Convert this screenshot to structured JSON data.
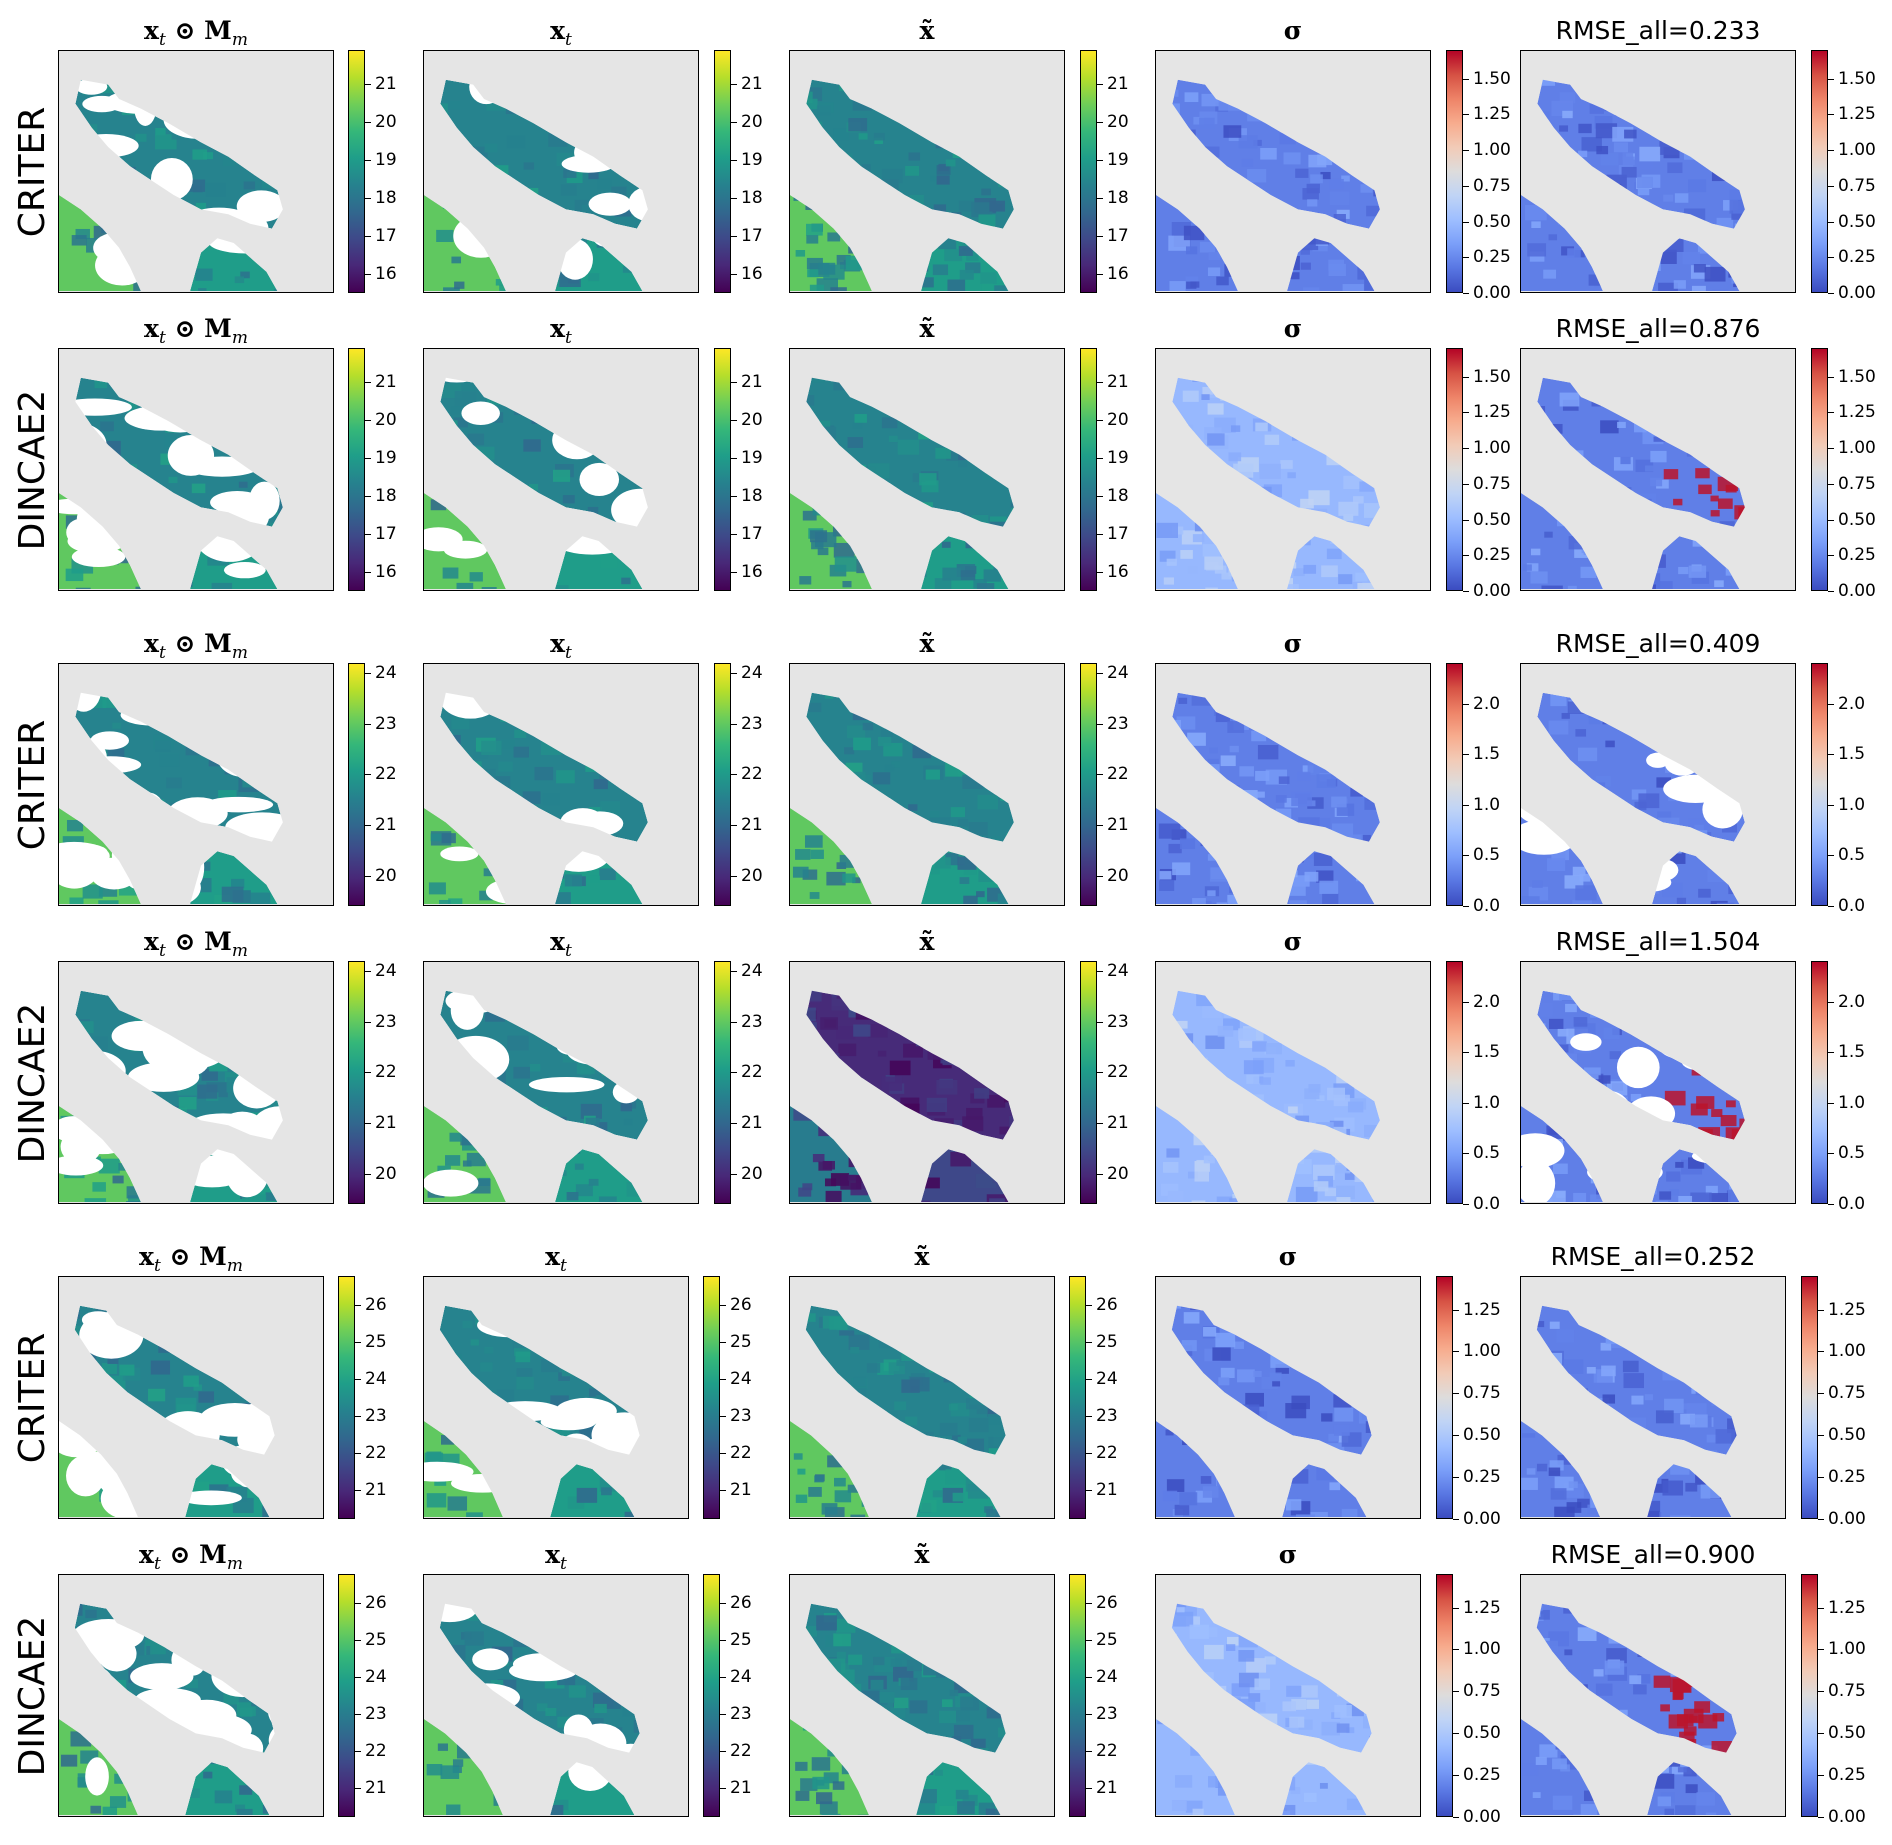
{
  "chart_data": {
    "type": "heatmap",
    "description_rows": [
      "CRITER",
      "DINCAE2",
      "CRITER",
      "DINCAE2",
      "CRITER",
      "DINCAE2"
    ],
    "columns": [
      {
        "title": "x_t ⊙ M_m",
        "display": "x⊙M",
        "kind": "masked_observation"
      },
      {
        "title": "x_t",
        "display": "x",
        "kind": "target"
      },
      {
        "title": "x̃",
        "display": "x̃",
        "kind": "reconstruction"
      },
      {
        "title": "σ",
        "display": "σ",
        "kind": "uncertainty"
      },
      {
        "title": "RMSE_all",
        "display": "RMSE",
        "kind": "error"
      }
    ],
    "rows": [
      {
        "method": "CRITER",
        "rmse_title": "RMSE_all=0.233",
        "sst_ticks": [
          "16",
          "17",
          "18",
          "19",
          "20",
          "21"
        ],
        "sst_range": [
          15.5,
          21.9
        ],
        "err_ticks": [
          "0.00",
          "0.25",
          "0.50",
          "0.75",
          "1.00",
          "1.25",
          "1.50"
        ],
        "err_range": [
          0,
          1.7
        ]
      },
      {
        "method": "DINCAE2",
        "rmse_title": "RMSE_all=0.876",
        "sst_ticks": [
          "16",
          "17",
          "18",
          "19",
          "20",
          "21"
        ],
        "sst_range": [
          15.5,
          21.9
        ],
        "err_ticks": [
          "0.00",
          "0.25",
          "0.50",
          "0.75",
          "1.00",
          "1.25",
          "1.50"
        ],
        "err_range": [
          0,
          1.7
        ]
      },
      {
        "method": "CRITER",
        "rmse_title": "RMSE_all=0.409",
        "sst_ticks": [
          "20",
          "21",
          "22",
          "23",
          "24"
        ],
        "sst_range": [
          19.4,
          24.2
        ],
        "err_ticks": [
          "0.0",
          "0.5",
          "1.0",
          "1.5",
          "2.0"
        ],
        "err_range": [
          0,
          2.4
        ]
      },
      {
        "method": "DINCAE2",
        "rmse_title": "RMSE_all=1.504",
        "sst_ticks": [
          "20",
          "21",
          "22",
          "23",
          "24"
        ],
        "sst_range": [
          19.4,
          24.2
        ],
        "err_ticks": [
          "0.0",
          "0.5",
          "1.0",
          "1.5",
          "2.0"
        ],
        "err_range": [
          0,
          2.4
        ]
      },
      {
        "method": "CRITER",
        "rmse_title": "RMSE_all=0.252",
        "sst_ticks": [
          "21",
          "22",
          "23",
          "24",
          "25",
          "26"
        ],
        "sst_range": [
          20.2,
          26.8
        ],
        "err_ticks": [
          "0.00",
          "0.25",
          "0.50",
          "0.75",
          "1.00",
          "1.25"
        ],
        "err_range": [
          0,
          1.45
        ]
      },
      {
        "method": "DINCAE2",
        "rmse_title": "RMSE_all=0.900",
        "sst_ticks": [
          "21",
          "22",
          "23",
          "24",
          "25",
          "26"
        ],
        "sst_range": [
          20.2,
          26.8
        ],
        "err_ticks": [
          "0.00",
          "0.25",
          "0.50",
          "0.75",
          "1.00",
          "1.25"
        ],
        "err_range": [
          0,
          1.45
        ]
      }
    ],
    "colormaps": {
      "sst": "viridis",
      "error": "coolwarm"
    },
    "colors": {
      "land": "#e5e5e5",
      "missing": "#ffffff"
    }
  }
}
